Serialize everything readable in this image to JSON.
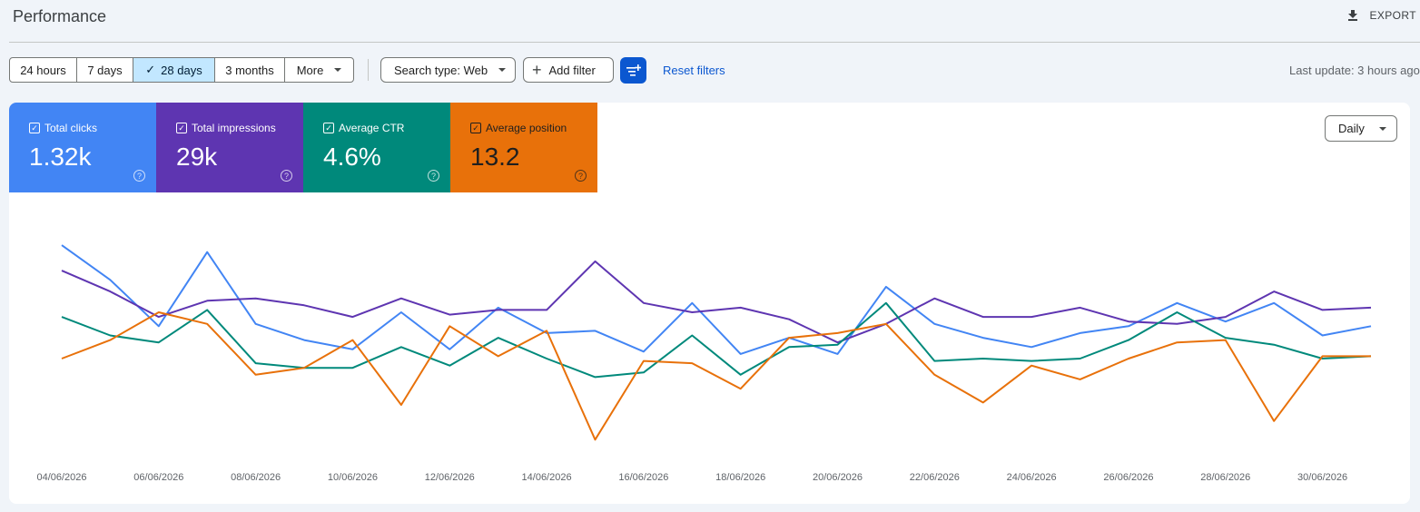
{
  "header": {
    "title": "Performance",
    "export_label": "EXPORT"
  },
  "toolbar": {
    "date_ranges": [
      {
        "label": "24 hours",
        "active": false
      },
      {
        "label": "7 days",
        "active": false
      },
      {
        "label": "28 days",
        "active": true
      },
      {
        "label": "3 months",
        "active": false
      },
      {
        "label": "More",
        "active": false
      }
    ],
    "search_type": "Search type: Web",
    "add_filter": "Add filter",
    "reset_filters": "Reset filters",
    "last_update": "Last update: 3 hours ago"
  },
  "metrics": [
    {
      "label": "Total clicks",
      "value": "1.32k",
      "color": "#4285f4",
      "checked": true
    },
    {
      "label": "Total impressions",
      "value": "29k",
      "color": "#5e35b1",
      "checked": true
    },
    {
      "label": "Average CTR",
      "value": "4.6%",
      "color": "#00897b",
      "checked": true
    },
    {
      "label": "Average position",
      "value": "13.2",
      "color": "#e8710a",
      "checked": true
    }
  ],
  "granularity": "Daily",
  "icons": [
    "download-icon",
    "check-icon",
    "plus-icon",
    "filter-settings-icon",
    "help-icon",
    "chevron-down-icon"
  ],
  "chart_data": {
    "type": "line",
    "x": [
      "04/06/2026",
      "05/06/2026",
      "06/06/2026",
      "07/06/2026",
      "08/06/2026",
      "09/06/2026",
      "10/06/2026",
      "11/06/2026",
      "12/06/2026",
      "13/06/2026",
      "14/06/2026",
      "15/06/2026",
      "16/06/2026",
      "17/06/2026",
      "18/06/2026",
      "19/06/2026",
      "20/06/2026",
      "21/06/2026",
      "22/06/2026",
      "23/06/2026",
      "24/06/2026",
      "25/06/2026",
      "26/06/2026",
      "27/06/2026",
      "28/06/2026",
      "29/06/2026",
      "30/06/2026",
      "01/07/2026"
    ],
    "x_tick_labels": [
      "04/06/2026",
      "06/06/2026",
      "08/06/2026",
      "10/06/2026",
      "12/06/2026",
      "14/06/2026",
      "16/06/2026",
      "18/06/2026",
      "20/06/2026",
      "22/06/2026",
      "24/06/2026",
      "26/06/2026",
      "28/06/2026",
      "30/06/2026"
    ],
    "y_axis_visible": false,
    "grid": false,
    "series": [
      {
        "name": "Total clicks",
        "color": "#4285f4",
        "values": [
          89,
          74,
          54,
          86,
          55,
          48,
          44,
          60,
          44,
          62,
          51,
          52,
          43,
          64,
          42,
          49,
          42,
          71,
          55,
          49,
          45,
          51,
          54,
          64,
          56,
          64,
          50,
          54
        ]
      },
      {
        "name": "Total impressions",
        "color": "#5e35b1",
        "values": [
          78,
          69,
          58,
          65,
          66,
          63,
          58,
          66,
          59,
          61,
          61,
          82,
          64,
          60,
          62,
          57,
          47,
          55,
          66,
          58,
          58,
          62,
          56,
          55,
          58,
          69,
          61,
          62
        ]
      },
      {
        "name": "Average CTR",
        "color": "#00897b",
        "values": [
          58,
          50,
          47,
          61,
          38,
          36,
          36,
          45,
          37,
          49,
          40,
          32,
          34,
          50,
          33,
          45,
          46,
          64,
          39,
          40,
          39,
          40,
          48,
          60,
          49,
          46,
          40,
          41
        ]
      },
      {
        "name": "Average position",
        "color": "#e8710a",
        "values": [
          40,
          48,
          60,
          55,
          33,
          36,
          48,
          20,
          54,
          41,
          52,
          5,
          39,
          38,
          27,
          49,
          51,
          55,
          33,
          21,
          37,
          31,
          40,
          47,
          48,
          13,
          41,
          41
        ]
      }
    ]
  }
}
